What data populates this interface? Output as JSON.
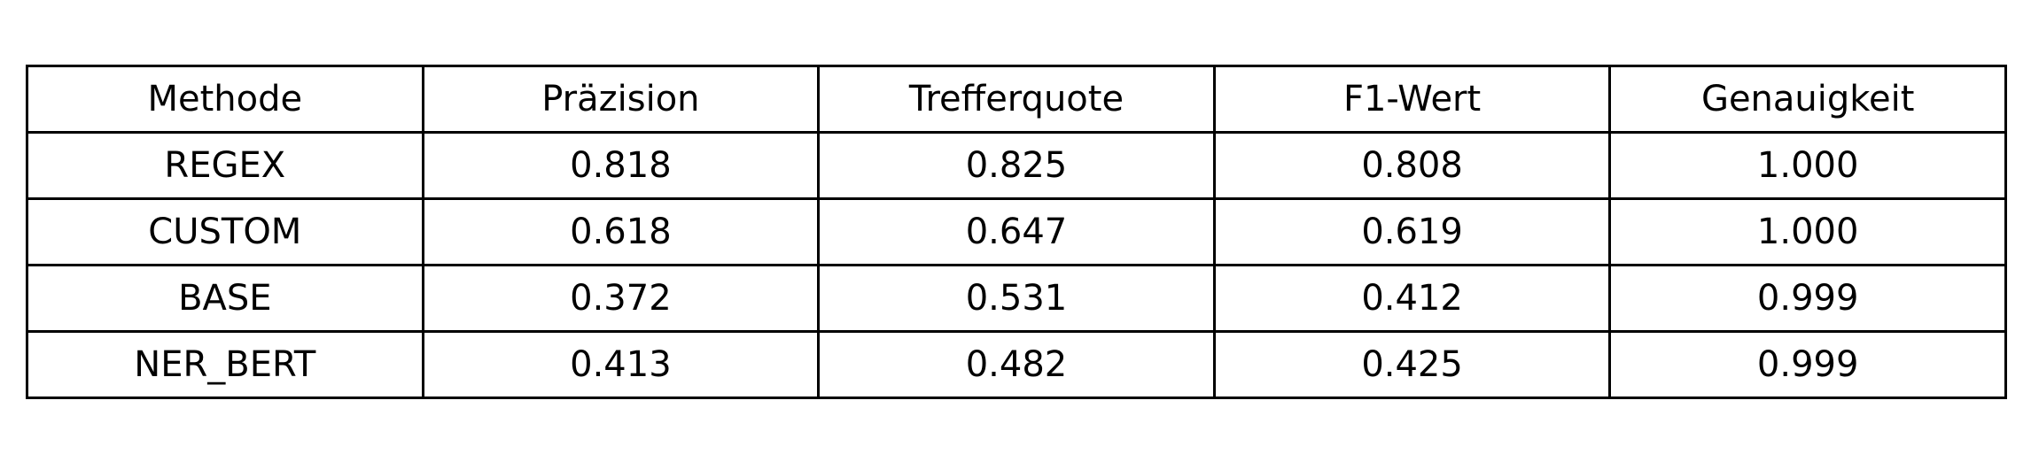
{
  "chart_data": {
    "type": "table",
    "columns": [
      "Methode",
      "Präzision",
      "Trefferquote",
      "F1-Wert",
      "Genauigkeit"
    ],
    "rows": [
      [
        "REGEX",
        "0.818",
        "0.825",
        "0.808",
        "1.000"
      ],
      [
        "CUSTOM",
        "0.618",
        "0.647",
        "0.619",
        "1.000"
      ],
      [
        "BASE",
        "0.372",
        "0.531",
        "0.412",
        "0.999"
      ],
      [
        "NER_BERT",
        "0.413",
        "0.482",
        "0.425",
        "0.999"
      ]
    ],
    "border_color": "#000000",
    "text_color": "#000000",
    "background_color": "#ffffff"
  }
}
